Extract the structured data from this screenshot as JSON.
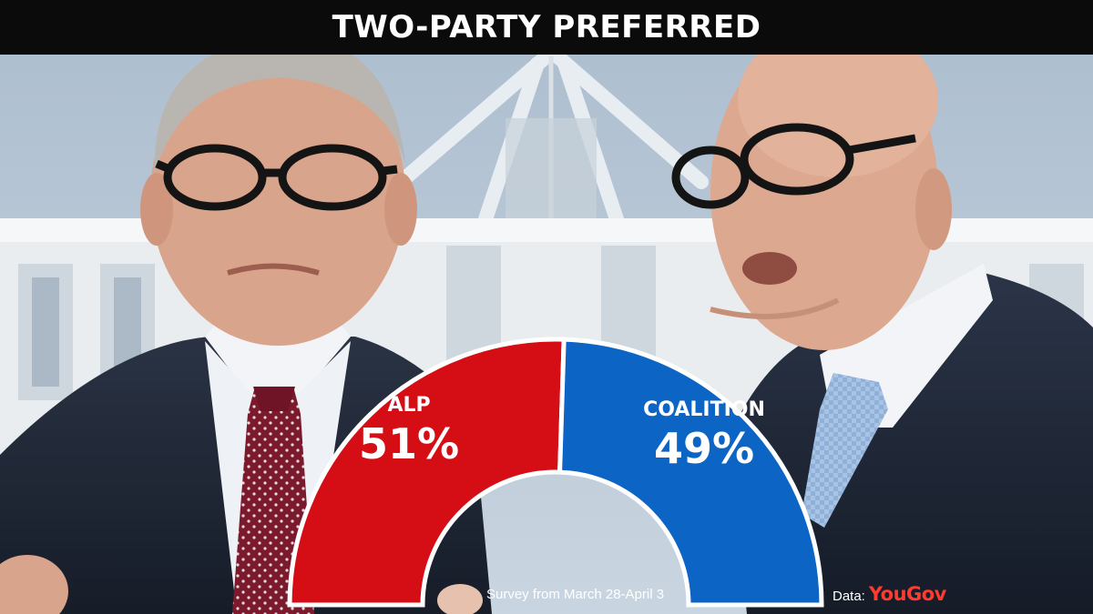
{
  "header": {
    "title": "TWO-PARTY PREFERRED"
  },
  "chart_data": {
    "type": "pie",
    "subtype": "semicircle",
    "categories": [
      "ALP",
      "COALITION"
    ],
    "values": [
      51,
      49
    ],
    "labels": [
      "51%",
      "49%"
    ],
    "colors": [
      "#d40e14",
      "#0c64c4"
    ]
  },
  "footer": {
    "survey_note": "Survey from March 28-April 3",
    "source_label": "Data:",
    "source_brand": "YouGov",
    "brand_color": "#ff3a2e"
  }
}
